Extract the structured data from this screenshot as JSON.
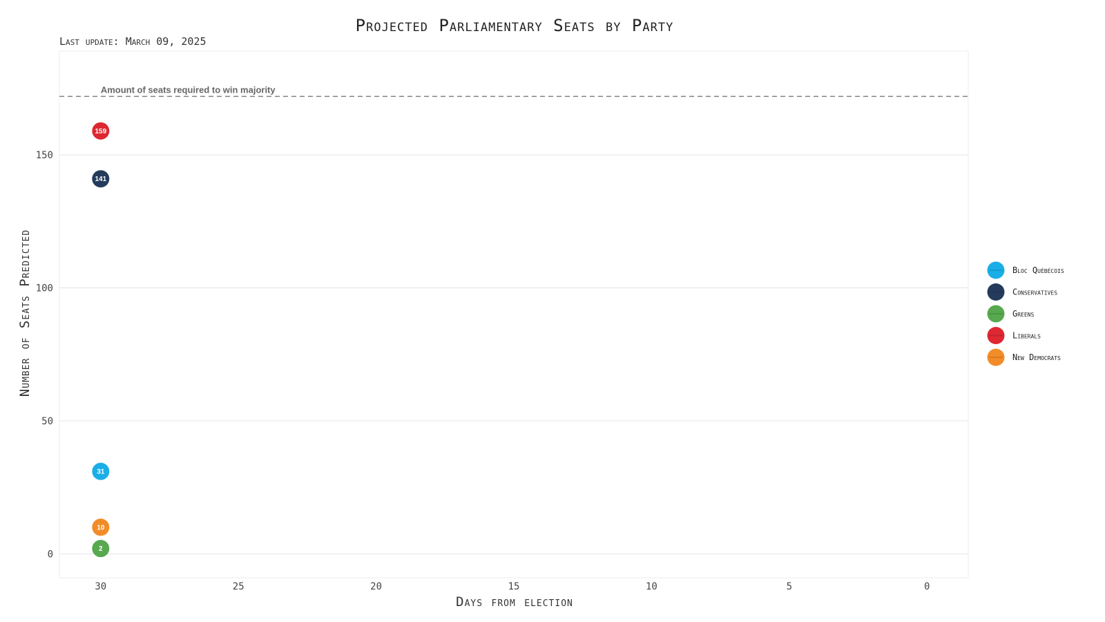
{
  "chart_data": {
    "type": "scatter",
    "title": "Projected Parliamentary Seats by Party",
    "subtitle": "Last update: March 09, 2025",
    "xlabel": "Days from election",
    "ylabel": "Number of Seats Predicted",
    "x_reversed": true,
    "xlim": [
      31.5,
      -1.5
    ],
    "ylim": [
      -9,
      189
    ],
    "xticks": [
      30,
      25,
      20,
      15,
      10,
      5,
      0
    ],
    "yticks": [
      0,
      50,
      100,
      150
    ],
    "grid": true,
    "legend_position": "right",
    "reference_line": {
      "y": 172,
      "style": "dashed",
      "label": "Amount of seats required to win majority"
    },
    "series": [
      {
        "name": "Bloc Québécois",
        "color": "#1aaee8",
        "points": [
          {
            "x": 30,
            "y": 31,
            "label": "31"
          }
        ]
      },
      {
        "name": "Conservatives",
        "color": "#243b5c",
        "points": [
          {
            "x": 30,
            "y": 141,
            "label": "141"
          }
        ]
      },
      {
        "name": "Greens",
        "color": "#57a84f",
        "points": [
          {
            "x": 30,
            "y": 2,
            "label": "2"
          }
        ]
      },
      {
        "name": "Liberals",
        "color": "#dd2832",
        "points": [
          {
            "x": 30,
            "y": 159,
            "label": "159"
          }
        ]
      },
      {
        "name": "New Democrats",
        "color": "#f28c28",
        "points": [
          {
            "x": 30,
            "y": 10,
            "label": "10"
          }
        ]
      }
    ]
  }
}
